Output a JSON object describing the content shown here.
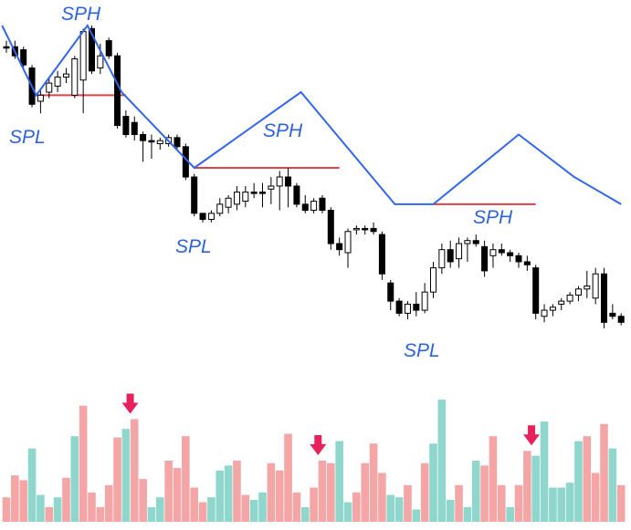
{
  "colors": {
    "background": "#ffffff",
    "candle": "#000000",
    "zigzag": "#3366ee",
    "support_line": "#e0404a",
    "label": "#2f63dd",
    "volume_up": "#8fd6cc",
    "volume_down": "#f4a6a6",
    "arrow": "#e8215d"
  },
  "labels": {
    "sph_1": "SPH",
    "sph_2": "SPH",
    "sph_3": "SPH",
    "spl_1": "SPL",
    "spl_2": "SPL",
    "spl_3": "SPL"
  },
  "chart_data": {
    "type": "candlestick",
    "axes_visible": false,
    "grid": false,
    "legend": "none",
    "price_range": [
      0,
      100
    ],
    "candles": [
      {
        "i": 0,
        "o": 93,
        "h": 95,
        "l": 91,
        "c": 93,
        "dir": "down"
      },
      {
        "i": 1,
        "o": 93,
        "h": 95,
        "l": 89,
        "c": 90,
        "dir": "down"
      },
      {
        "i": 2,
        "o": 92,
        "h": 93,
        "l": 86,
        "c": 87,
        "dir": "down"
      },
      {
        "i": 3,
        "o": 86,
        "h": 87,
        "l": 73,
        "c": 74,
        "dir": "down"
      },
      {
        "i": 4,
        "o": 75,
        "h": 79,
        "l": 71,
        "c": 77,
        "dir": "up"
      },
      {
        "i": 5,
        "o": 78,
        "h": 83,
        "l": 76,
        "c": 81,
        "dir": "up"
      },
      {
        "i": 6,
        "o": 80,
        "h": 85,
        "l": 78,
        "c": 83,
        "dir": "up"
      },
      {
        "i": 7,
        "o": 83,
        "h": 86,
        "l": 81,
        "c": 84,
        "dir": "up"
      },
      {
        "i": 8,
        "o": 77,
        "h": 90,
        "l": 76,
        "c": 89,
        "dir": "up"
      },
      {
        "i": 9,
        "o": 82,
        "h": 99,
        "l": 71,
        "c": 98,
        "dir": "up"
      },
      {
        "i": 10,
        "o": 99,
        "h": 100,
        "l": 84,
        "c": 85,
        "dir": "down"
      },
      {
        "i": 11,
        "o": 86,
        "h": 94,
        "l": 84,
        "c": 90,
        "dir": "up"
      },
      {
        "i": 12,
        "o": 95,
        "h": 96,
        "l": 89,
        "c": 90,
        "dir": "down"
      },
      {
        "i": 13,
        "o": 90,
        "h": 91,
        "l": 66,
        "c": 67,
        "dir": "down"
      },
      {
        "i": 14,
        "o": 70,
        "h": 72,
        "l": 63,
        "c": 64,
        "dir": "down"
      },
      {
        "i": 15,
        "o": 68,
        "h": 70,
        "l": 62,
        "c": 64,
        "dir": "down"
      },
      {
        "i": 16,
        "o": 64,
        "h": 65,
        "l": 55,
        "c": 62,
        "dir": "down"
      },
      {
        "i": 17,
        "o": 62,
        "h": 64,
        "l": 56,
        "c": 62,
        "dir": "down"
      },
      {
        "i": 18,
        "o": 61,
        "h": 63,
        "l": 59,
        "c": 62,
        "dir": "up"
      },
      {
        "i": 19,
        "o": 61,
        "h": 64,
        "l": 60,
        "c": 63,
        "dir": "up"
      },
      {
        "i": 20,
        "o": 63,
        "h": 64,
        "l": 59,
        "c": 60,
        "dir": "down"
      },
      {
        "i": 21,
        "o": 60,
        "h": 61,
        "l": 49,
        "c": 50,
        "dir": "down"
      },
      {
        "i": 22,
        "o": 50,
        "h": 51,
        "l": 37,
        "c": 38,
        "dir": "down"
      },
      {
        "i": 23,
        "o": 38,
        "h": 38,
        "l": 35,
        "c": 36,
        "dir": "down"
      },
      {
        "i": 24,
        "o": 36,
        "h": 39,
        "l": 35,
        "c": 38,
        "dir": "up"
      },
      {
        "i": 25,
        "o": 38,
        "h": 43,
        "l": 37,
        "c": 41,
        "dir": "up"
      },
      {
        "i": 26,
        "o": 40,
        "h": 44,
        "l": 38,
        "c": 43,
        "dir": "up"
      },
      {
        "i": 27,
        "o": 41,
        "h": 47,
        "l": 39,
        "c": 45,
        "dir": "up"
      },
      {
        "i": 28,
        "o": 42,
        "h": 47,
        "l": 40,
        "c": 45,
        "dir": "up"
      },
      {
        "i": 29,
        "o": 45,
        "h": 48,
        "l": 43,
        "c": 45,
        "dir": "down"
      },
      {
        "i": 30,
        "o": 45,
        "h": 48,
        "l": 40,
        "c": 45,
        "dir": "down"
      },
      {
        "i": 31,
        "o": 46,
        "h": 50,
        "l": 41,
        "c": 47,
        "dir": "up"
      },
      {
        "i": 32,
        "o": 47,
        "h": 52,
        "l": 39,
        "c": 50,
        "dir": "up"
      },
      {
        "i": 33,
        "o": 50,
        "h": 53,
        "l": 40,
        "c": 47,
        "dir": "down"
      },
      {
        "i": 34,
        "o": 47,
        "h": 48,
        "l": 40,
        "c": 41,
        "dir": "down"
      },
      {
        "i": 35,
        "o": 41,
        "h": 44,
        "l": 38,
        "c": 39,
        "dir": "down"
      },
      {
        "i": 36,
        "o": 39,
        "h": 43,
        "l": 38,
        "c": 42,
        "dir": "up"
      },
      {
        "i": 37,
        "o": 43,
        "h": 44,
        "l": 38,
        "c": 39,
        "dir": "down"
      },
      {
        "i": 38,
        "o": 39,
        "h": 40,
        "l": 26,
        "c": 28,
        "dir": "down"
      },
      {
        "i": 39,
        "o": 28,
        "h": 30,
        "l": 24,
        "c": 26,
        "dir": "down"
      },
      {
        "i": 40,
        "o": 25,
        "h": 33,
        "l": 20,
        "c": 32,
        "dir": "up"
      },
      {
        "i": 41,
        "o": 33,
        "h": 34,
        "l": 31,
        "c": 33,
        "dir": "up"
      },
      {
        "i": 42,
        "o": 33,
        "h": 34,
        "l": 31,
        "c": 33,
        "dir": "down"
      },
      {
        "i": 43,
        "o": 33,
        "h": 35,
        "l": 31,
        "c": 32,
        "dir": "down"
      },
      {
        "i": 44,
        "o": 31,
        "h": 32,
        "l": 16,
        "c": 18,
        "dir": "down"
      },
      {
        "i": 45,
        "o": 15,
        "h": 16,
        "l": 6,
        "c": 9,
        "dir": "down"
      },
      {
        "i": 46,
        "o": 9,
        "h": 10,
        "l": 4,
        "c": 5,
        "dir": "down"
      },
      {
        "i": 47,
        "o": 5,
        "h": 9,
        "l": 3,
        "c": 8,
        "dir": "up"
      },
      {
        "i": 48,
        "o": 8,
        "h": 12,
        "l": 4,
        "c": 6,
        "dir": "down"
      },
      {
        "i": 49,
        "o": 6,
        "h": 15,
        "l": 5,
        "c": 12,
        "dir": "up"
      },
      {
        "i": 50,
        "o": 12,
        "h": 22,
        "l": 10,
        "c": 20,
        "dir": "up"
      },
      {
        "i": 51,
        "o": 20,
        "h": 28,
        "l": 18,
        "c": 26,
        "dir": "up"
      },
      {
        "i": 52,
        "o": 26,
        "h": 29,
        "l": 20,
        "c": 22,
        "dir": "down"
      },
      {
        "i": 53,
        "o": 23,
        "h": 30,
        "l": 20,
        "c": 28,
        "dir": "up"
      },
      {
        "i": 54,
        "o": 28,
        "h": 30,
        "l": 22,
        "c": 29,
        "dir": "up"
      },
      {
        "i": 55,
        "o": 29,
        "h": 31,
        "l": 27,
        "c": 28,
        "dir": "down"
      },
      {
        "i": 56,
        "o": 27,
        "h": 29,
        "l": 17,
        "c": 19,
        "dir": "down"
      },
      {
        "i": 57,
        "o": 24,
        "h": 28,
        "l": 20,
        "c": 26,
        "dir": "up"
      },
      {
        "i": 58,
        "o": 26,
        "h": 28,
        "l": 24,
        "c": 25,
        "dir": "down"
      },
      {
        "i": 59,
        "o": 25,
        "h": 26,
        "l": 22,
        "c": 24,
        "dir": "down"
      },
      {
        "i": 60,
        "o": 24,
        "h": 25,
        "l": 20,
        "c": 22,
        "dir": "down"
      },
      {
        "i": 61,
        "o": 22,
        "h": 24,
        "l": 19,
        "c": 21,
        "dir": "down"
      },
      {
        "i": 62,
        "o": 20,
        "h": 21,
        "l": 3,
        "c": 5,
        "dir": "down"
      },
      {
        "i": 63,
        "o": 4,
        "h": 8,
        "l": 2,
        "c": 6,
        "dir": "up"
      },
      {
        "i": 64,
        "o": 6,
        "h": 8,
        "l": 4,
        "c": 7,
        "dir": "up"
      },
      {
        "i": 65,
        "o": 8,
        "h": 10,
        "l": 6,
        "c": 9,
        "dir": "up"
      },
      {
        "i": 66,
        "o": 9,
        "h": 12,
        "l": 8,
        "c": 11,
        "dir": "up"
      },
      {
        "i": 67,
        "o": 11,
        "h": 14,
        "l": 9,
        "c": 13,
        "dir": "up"
      },
      {
        "i": 68,
        "o": 13,
        "h": 19,
        "l": 10,
        "c": 14,
        "dir": "up"
      },
      {
        "i": 69,
        "o": 10,
        "h": 20,
        "l": 8,
        "c": 18,
        "dir": "up"
      },
      {
        "i": 70,
        "o": 18,
        "h": 20,
        "l": 0,
        "c": 2,
        "dir": "down"
      },
      {
        "i": 71,
        "o": 5,
        "h": 8,
        "l": 3,
        "c": 4,
        "dir": "down"
      },
      {
        "i": 72,
        "o": 4,
        "h": 5,
        "l": 1,
        "c": 2,
        "dir": "down"
      }
    ],
    "zigzag_points": [
      {
        "i": -0.5,
        "price": 100
      },
      {
        "i": 3.5,
        "price": 77
      },
      {
        "i": 9.5,
        "price": 100
      },
      {
        "i": 13.5,
        "price": 78
      },
      {
        "i": 22.0,
        "price": 53
      },
      {
        "i": 34.5,
        "price": 78
      },
      {
        "i": 45.5,
        "price": 41
      },
      {
        "i": 50.0,
        "price": 41
      },
      {
        "i": 60.0,
        "price": 64
      },
      {
        "i": 66.5,
        "price": 50
      },
      {
        "i": 72.0,
        "price": 41
      }
    ],
    "support_lines": [
      {
        "from_i": 3.5,
        "to_i": 14,
        "price": 77
      },
      {
        "from_i": 22,
        "to_i": 39,
        "price": 53
      },
      {
        "from_i": 50,
        "to_i": 62,
        "price": 41
      }
    ],
    "swing_labels": [
      {
        "text_key": "sph_1",
        "type": "SPH",
        "at_i": 9.5
      },
      {
        "text_key": "spl_1",
        "type": "SPL",
        "at_i": 3.5
      },
      {
        "text_key": "sph_2",
        "type": "SPH",
        "at_i": 34.5
      },
      {
        "text_key": "spl_2",
        "type": "SPL",
        "at_i": 22.0
      },
      {
        "text_key": "sph_3",
        "type": "SPH",
        "at_i": 60.0
      },
      {
        "text_key": "spl_3",
        "type": "SPL",
        "at_i": 50.0
      }
    ],
    "volume": [
      {
        "i": 0,
        "v": 20,
        "dir": "down"
      },
      {
        "i": 1,
        "v": 38,
        "dir": "down"
      },
      {
        "i": 2,
        "v": 34,
        "dir": "down"
      },
      {
        "i": 3,
        "v": 60,
        "dir": "up"
      },
      {
        "i": 4,
        "v": 22,
        "dir": "up"
      },
      {
        "i": 5,
        "v": 12,
        "dir": "down"
      },
      {
        "i": 6,
        "v": 20,
        "dir": "up"
      },
      {
        "i": 7,
        "v": 36,
        "dir": "down"
      },
      {
        "i": 8,
        "v": 70,
        "dir": "up"
      },
      {
        "i": 9,
        "v": 95,
        "dir": "down"
      },
      {
        "i": 10,
        "v": 24,
        "dir": "down"
      },
      {
        "i": 11,
        "v": 12,
        "dir": "down"
      },
      {
        "i": 12,
        "v": 30,
        "dir": "down"
      },
      {
        "i": 13,
        "v": 69,
        "dir": "down"
      },
      {
        "i": 14,
        "v": 76,
        "dir": "up"
      },
      {
        "i": 15,
        "v": 84,
        "dir": "down"
      },
      {
        "i": 16,
        "v": 35,
        "dir": "down"
      },
      {
        "i": 17,
        "v": 12,
        "dir": "up"
      },
      {
        "i": 18,
        "v": 20,
        "dir": "up"
      },
      {
        "i": 19,
        "v": 50,
        "dir": "down"
      },
      {
        "i": 20,
        "v": 44,
        "dir": "down"
      },
      {
        "i": 21,
        "v": 70,
        "dir": "down"
      },
      {
        "i": 22,
        "v": 28,
        "dir": "down"
      },
      {
        "i": 23,
        "v": 16,
        "dir": "down"
      },
      {
        "i": 24,
        "v": 20,
        "dir": "up"
      },
      {
        "i": 25,
        "v": 42,
        "dir": "up"
      },
      {
        "i": 26,
        "v": 46,
        "dir": "up"
      },
      {
        "i": 27,
        "v": 50,
        "dir": "down"
      },
      {
        "i": 28,
        "v": 22,
        "dir": "down"
      },
      {
        "i": 29,
        "v": 18,
        "dir": "up"
      },
      {
        "i": 30,
        "v": 24,
        "dir": "up"
      },
      {
        "i": 31,
        "v": 48,
        "dir": "down"
      },
      {
        "i": 32,
        "v": 42,
        "dir": "down"
      },
      {
        "i": 33,
        "v": 72,
        "dir": "down"
      },
      {
        "i": 34,
        "v": 24,
        "dir": "down"
      },
      {
        "i": 35,
        "v": 12,
        "dir": "up"
      },
      {
        "i": 36,
        "v": 28,
        "dir": "down"
      },
      {
        "i": 37,
        "v": 50,
        "dir": "down"
      },
      {
        "i": 38,
        "v": 48,
        "dir": "down"
      },
      {
        "i": 39,
        "v": 66,
        "dir": "up"
      },
      {
        "i": 40,
        "v": 16,
        "dir": "up"
      },
      {
        "i": 41,
        "v": 24,
        "dir": "down"
      },
      {
        "i": 42,
        "v": 48,
        "dir": "down"
      },
      {
        "i": 43,
        "v": 64,
        "dir": "down"
      },
      {
        "i": 44,
        "v": 40,
        "dir": "down"
      },
      {
        "i": 45,
        "v": 22,
        "dir": "up"
      },
      {
        "i": 46,
        "v": 20,
        "dir": "up"
      },
      {
        "i": 47,
        "v": 30,
        "dir": "down"
      },
      {
        "i": 48,
        "v": 10,
        "dir": "up"
      },
      {
        "i": 49,
        "v": 48,
        "dir": "down"
      },
      {
        "i": 50,
        "v": 64,
        "dir": "up"
      },
      {
        "i": 51,
        "v": 100,
        "dir": "up"
      },
      {
        "i": 52,
        "v": 18,
        "dir": "up"
      },
      {
        "i": 53,
        "v": 30,
        "dir": "down"
      },
      {
        "i": 54,
        "v": 12,
        "dir": "up"
      },
      {
        "i": 55,
        "v": 50,
        "dir": "up"
      },
      {
        "i": 56,
        "v": 46,
        "dir": "down"
      },
      {
        "i": 57,
        "v": 70,
        "dir": "down"
      },
      {
        "i": 58,
        "v": 30,
        "dir": "down"
      },
      {
        "i": 59,
        "v": 12,
        "dir": "up"
      },
      {
        "i": 60,
        "v": 30,
        "dir": "down"
      },
      {
        "i": 61,
        "v": 58,
        "dir": "down"
      },
      {
        "i": 62,
        "v": 54,
        "dir": "up"
      },
      {
        "i": 63,
        "v": 82,
        "dir": "up"
      },
      {
        "i": 64,
        "v": 28,
        "dir": "up"
      },
      {
        "i": 65,
        "v": 28,
        "dir": "up"
      },
      {
        "i": 66,
        "v": 32,
        "dir": "up"
      },
      {
        "i": 67,
        "v": 66,
        "dir": "up"
      },
      {
        "i": 68,
        "v": 70,
        "dir": "down"
      },
      {
        "i": 69,
        "v": 40,
        "dir": "down"
      },
      {
        "i": 70,
        "v": 80,
        "dir": "down"
      },
      {
        "i": 71,
        "v": 60,
        "dir": "up"
      },
      {
        "i": 72,
        "v": 30,
        "dir": "down"
      }
    ],
    "volume_arrows": [
      {
        "at_i": 14.5
      },
      {
        "at_i": 36.5
      },
      {
        "at_i": 61.5
      }
    ]
  }
}
